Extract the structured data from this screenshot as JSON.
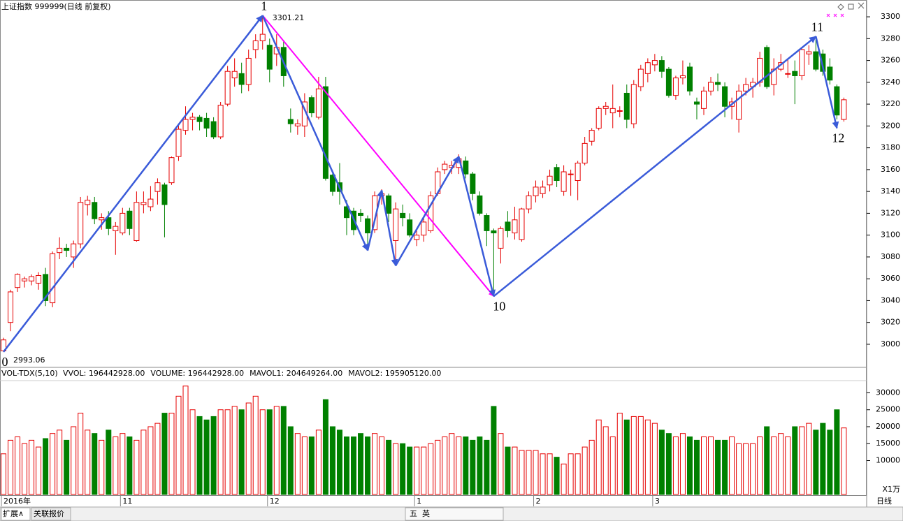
{
  "chart_data": [
    {
      "type": "candlestick",
      "title": "上证指数 999999(日线 前复权)",
      "up_color": "#e60000",
      "down_color": "#008000",
      "ylim": [
        2979.5,
        3312.2
      ],
      "yticks": [
        3000,
        3020,
        3040,
        3060,
        3080,
        3100,
        3120,
        3140,
        3160,
        3180,
        3200,
        3220,
        3240,
        3260,
        3280,
        3300
      ],
      "categories": [
        "2016年",
        null,
        null,
        null,
        null,
        null,
        null,
        null,
        null,
        null,
        null,
        null,
        null,
        null,
        null,
        null,
        null,
        "11",
        null,
        null,
        null,
        null,
        null,
        null,
        null,
        null,
        null,
        null,
        null,
        null,
        null,
        null,
        null,
        null,
        null,
        null,
        null,
        null,
        "12",
        null,
        null,
        null,
        null,
        null,
        null,
        null,
        null,
        null,
        null,
        null,
        null,
        null,
        null,
        null,
        null,
        null,
        null,
        null,
        null,
        "1",
        null,
        null,
        null,
        null,
        null,
        null,
        null,
        null,
        null,
        null,
        null,
        null,
        null,
        null,
        null,
        null,
        "2",
        null,
        null,
        null,
        null,
        null,
        null,
        null,
        null,
        null,
        null,
        null,
        null,
        null,
        null,
        null,
        null,
        "3",
        null,
        null,
        null,
        null,
        null,
        null,
        null,
        null,
        null,
        null,
        null,
        null,
        null,
        null,
        null,
        null,
        null,
        null,
        null,
        null,
        null,
        null
      ],
      "ohlc": [
        [
          2994,
          3006,
          2993.06,
          3004
        ],
        [
          3020,
          3050,
          3012,
          3048
        ],
        [
          3052,
          3065,
          3048,
          3064
        ],
        [
          3058,
          3062,
          3052,
          3060
        ],
        [
          3058,
          3064,
          3054,
          3062
        ],
        [
          3056,
          3066,
          3050,
          3063
        ],
        [
          3064,
          3070,
          3035,
          3040
        ],
        [
          3038,
          3085,
          3034,
          3083
        ],
        [
          3084,
          3098,
          3078,
          3088
        ],
        [
          3088,
          3092,
          3080,
          3086
        ],
        [
          3080,
          3095,
          3070,
          3092
        ],
        [
          3092,
          3135,
          3088,
          3130
        ],
        [
          3128,
          3136,
          3118,
          3132
        ],
        [
          3130,
          3135,
          3110,
          3115
        ],
        [
          3114,
          3120,
          3105,
          3116
        ],
        [
          3116,
          3122,
          3100,
          3106
        ],
        [
          3104,
          3112,
          3082,
          3108
        ],
        [
          3102,
          3125,
          3100,
          3120
        ],
        [
          3122,
          3125,
          3100,
          3106
        ],
        [
          3095,
          3140,
          3094,
          3130
        ],
        [
          3128,
          3140,
          3120,
          3130
        ],
        [
          3126,
          3145,
          3122,
          3133
        ],
        [
          3140,
          3152,
          3128,
          3148
        ],
        [
          3146,
          3148,
          3098,
          3128
        ],
        [
          3148,
          3172,
          3146,
          3171
        ],
        [
          3172,
          3200,
          3168,
          3197
        ],
        [
          3196,
          3218,
          3192,
          3206
        ],
        [
          3206,
          3212,
          3196,
          3208
        ],
        [
          3208,
          3210,
          3196,
          3204
        ],
        [
          3207,
          3212,
          3190,
          3198
        ],
        [
          3204,
          3208,
          3188,
          3190
        ],
        [
          3190,
          3222,
          3188,
          3219
        ],
        [
          3220,
          3255,
          3218,
          3250
        ],
        [
          3244,
          3262,
          3236,
          3250
        ],
        [
          3248,
          3258,
          3230,
          3238
        ],
        [
          3238,
          3270,
          3232,
          3262
        ],
        [
          3270,
          3284,
          3262,
          3278
        ],
        [
          3278,
          3301.21,
          3270,
          3284
        ],
        [
          3274,
          3280,
          3240,
          3252
        ],
        [
          3266,
          3284,
          3255,
          3272
        ],
        [
          3272,
          3278,
          3236,
          3246
        ],
        [
          3206,
          3216,
          3194,
          3202
        ],
        [
          3200,
          3206,
          3192,
          3202
        ],
        [
          3200,
          3230,
          3190,
          3222
        ],
        [
          3226,
          3228,
          3208,
          3212
        ],
        [
          3208,
          3245,
          3206,
          3234
        ],
        [
          3236,
          3245,
          3150,
          3152
        ],
        [
          3155,
          3158,
          3136,
          3140
        ],
        [
          3148,
          3166,
          3128,
          3140
        ],
        [
          3126,
          3132,
          3100,
          3116
        ],
        [
          3122,
          3125,
          3100,
          3105
        ],
        [
          3120,
          3124,
          3112,
          3118
        ],
        [
          3115,
          3118,
          3092,
          3102
        ],
        [
          3105,
          3140,
          3102,
          3136
        ],
        [
          3136,
          3142,
          3128,
          3138
        ],
        [
          3136,
          3138,
          3112,
          3120
        ],
        [
          3095,
          3130,
          3072,
          3124
        ],
        [
          3120,
          3128,
          3108,
          3116
        ],
        [
          3114,
          3120,
          3098,
          3100
        ],
        [
          3096,
          3104,
          3090,
          3100
        ],
        [
          3100,
          3116,
          3094,
          3112
        ],
        [
          3104,
          3140,
          3102,
          3136
        ],
        [
          3138,
          3162,
          3136,
          3158
        ],
        [
          3160,
          3168,
          3156,
          3165
        ],
        [
          3162,
          3168,
          3156,
          3164
        ],
        [
          3162,
          3174,
          3156,
          3170
        ],
        [
          3168,
          3172,
          3152,
          3156
        ],
        [
          3156,
          3158,
          3132,
          3138
        ],
        [
          3136,
          3140,
          3118,
          3120
        ],
        [
          3118,
          3120,
          3090,
          3104
        ],
        [
          3104,
          3106,
          3044,
          3102
        ],
        [
          3088,
          3108,
          3074,
          3106
        ],
        [
          3112,
          3122,
          3098,
          3104
        ],
        [
          3102,
          3126,
          3096,
          3114
        ],
        [
          3096,
          3125,
          3094,
          3124
        ],
        [
          3124,
          3140,
          3120,
          3136
        ],
        [
          3136,
          3150,
          3130,
          3144
        ],
        [
          3138,
          3150,
          3134,
          3144
        ],
        [
          3146,
          3160,
          3140,
          3154
        ],
        [
          3162,
          3165,
          3144,
          3150
        ],
        [
          3140,
          3164,
          3136,
          3158
        ],
        [
          3156,
          3160,
          3136,
          3156
        ],
        [
          3150,
          3168,
          3132,
          3166
        ],
        [
          3166,
          3190,
          3164,
          3184
        ],
        [
          3186,
          3198,
          3182,
          3196
        ],
        [
          3198,
          3218,
          3196,
          3216
        ],
        [
          3216,
          3222,
          3210,
          3218
        ],
        [
          3212,
          3238,
          3198,
          3216
        ],
        [
          3214,
          3218,
          3208,
          3214
        ],
        [
          3230,
          3238,
          3198,
          3206
        ],
        [
          3202,
          3242,
          3198,
          3238
        ],
        [
          3236,
          3256,
          3232,
          3252
        ],
        [
          3248,
          3262,
          3240,
          3258
        ],
        [
          3256,
          3266,
          3250,
          3260
        ],
        [
          3260,
          3264,
          3244,
          3250
        ],
        [
          3252,
          3254,
          3226,
          3228
        ],
        [
          3228,
          3246,
          3224,
          3244
        ],
        [
          3244,
          3260,
          3238,
          3246
        ],
        [
          3254,
          3258,
          3228,
          3232
        ],
        [
          3222,
          3226,
          3206,
          3220
        ],
        [
          3216,
          3236,
          3210,
          3232
        ],
        [
          3232,
          3245,
          3228,
          3240
        ],
        [
          3240,
          3248,
          3232,
          3238
        ],
        [
          3236,
          3240,
          3208,
          3218
        ],
        [
          3218,
          3226,
          3206,
          3222
        ],
        [
          3206,
          3238,
          3194,
          3232
        ],
        [
          3232,
          3244,
          3228,
          3238
        ],
        [
          3236,
          3244,
          3226,
          3240
        ],
        [
          3240,
          3268,
          3236,
          3262
        ],
        [
          3272,
          3274,
          3234,
          3236
        ],
        [
          3238,
          3262,
          3228,
          3252
        ],
        [
          3252,
          3266,
          3250,
          3258
        ],
        [
          3248,
          3262,
          3244,
          3248
        ],
        [
          3250,
          3260,
          3220,
          3246
        ],
        [
          3246,
          3272,
          3242,
          3270
        ],
        [
          3266,
          3274,
          3256,
          3268
        ],
        [
          3268,
          3282,
          3250,
          3252
        ],
        [
          3266,
          3270,
          3246,
          3250
        ],
        [
          3254,
          3262,
          3238,
          3242
        ],
        [
          3236,
          3238,
          3206,
          3210
        ],
        [
          3206,
          3226,
          3204,
          3224
        ]
      ],
      "waves": [
        {
          "index": 0,
          "value": 2993.06,
          "label": "0"
        },
        {
          "index": 37,
          "value": 3301.21,
          "label": "1"
        },
        {
          "index": 52,
          "value": 3086
        },
        {
          "index": 54,
          "value": 3141
        },
        {
          "index": 56,
          "value": 3072
        },
        {
          "index": 65,
          "value": 3172
        },
        {
          "index": 70,
          "value": 3044,
          "label": "10"
        },
        {
          "index": 116,
          "value": 3282,
          "label": "11"
        },
        {
          "index": 119,
          "value": 3198,
          "label": "12"
        }
      ],
      "wave_color": "#3a5bd9",
      "trend": [
        {
          "index": 37,
          "value": 3301.21
        },
        {
          "index": 70,
          "value": 3044
        }
      ],
      "trend_color": "#ff00ff"
    },
    {
      "type": "bar",
      "title": "VOL-TDX(5,10)",
      "legend": [
        {
          "text": "VVOL: 196442928.00",
          "color": "#000080"
        },
        {
          "text": "VOLUME: 196442928.00",
          "color": "#e000e0"
        },
        {
          "text": "MAVOL1: 204649264.00",
          "color": "#e000e0"
        },
        {
          "text": "MAVOL2: 195905120.00",
          "color": "#808080"
        }
      ],
      "unit": "X1万",
      "ylim": [
        0,
        33600
      ],
      "yticks": [
        10000,
        15000,
        20000,
        25000,
        30000
      ],
      "values": [
        12000,
        16000,
        17000,
        15000,
        16000,
        14000,
        16500,
        18000,
        19000,
        16000,
        20000,
        24000,
        19000,
        18000,
        16000,
        19000,
        17000,
        18000,
        17000,
        16000,
        19000,
        20000,
        21000,
        24000,
        24000,
        29000,
        32000,
        25000,
        23000,
        22000,
        23000,
        25000,
        25000,
        26000,
        25000,
        27000,
        29000,
        25000,
        25000,
        26000,
        26000,
        20000,
        18000,
        17000,
        17000,
        19000,
        28000,
        20000,
        19000,
        17000,
        17000,
        18000,
        17000,
        18000,
        17000,
        16000,
        15000,
        15000,
        14000,
        14000,
        14000,
        15000,
        16000,
        17000,
        18000,
        17000,
        17000,
        16000,
        17000,
        16000,
        26000,
        18000,
        14000,
        14000,
        13000,
        13000,
        13000,
        12000,
        12000,
        11000,
        9000,
        12000,
        12000,
        14000,
        16000,
        22000,
        20000,
        17000,
        24000,
        22000,
        23000,
        23000,
        22000,
        21000,
        19000,
        18000,
        17000,
        18000,
        17000,
        16000,
        17000,
        17000,
        16000,
        16000,
        17000,
        15000,
        15000,
        15000,
        17000,
        20000,
        17000,
        18000,
        17000,
        20000,
        20000,
        21000,
        19000,
        21000,
        19000,
        25000,
        19644
      ]
    }
  ],
  "tabs": [
    "扩展∧",
    "关联报价"
  ],
  "period": "日线",
  "toolbar": [
    "五",
    "英"
  ]
}
